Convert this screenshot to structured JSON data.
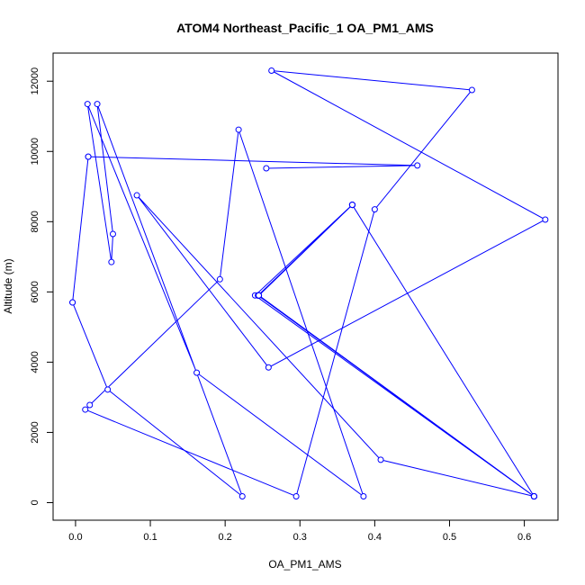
{
  "chart_data": {
    "type": "line",
    "title": "ATOM4 Northeast_Pacific_1 OA_PM1_AMS",
    "xlabel": "OA_PM1_AMS",
    "ylabel": "Altitude (m)",
    "xlim": [
      -0.03,
      0.645
    ],
    "ylim": [
      -500,
      12800
    ],
    "x_ticks": [
      0.0,
      0.1,
      0.2,
      0.3,
      0.4,
      0.5,
      0.6
    ],
    "x_tick_labels": [
      "0.0",
      "0.1",
      "0.2",
      "0.3",
      "0.4",
      "0.5",
      "0.6"
    ],
    "y_ticks": [
      0,
      2000,
      4000,
      6000,
      8000,
      10000,
      12000
    ],
    "y_tick_labels": [
      "0",
      "2000",
      "4000",
      "6000",
      "8000",
      "10000",
      "12000"
    ],
    "grid": false,
    "series": [
      {
        "color": "#0000ff",
        "marker": "open-circle",
        "points": [
          {
            "x": 0.613,
            "y": 180
          },
          {
            "x": 0.245,
            "y": 5900
          },
          {
            "x": 0.37,
            "y": 8480
          },
          {
            "x": 0.244,
            "y": 5900
          },
          {
            "x": 0.613,
            "y": 180
          },
          {
            "x": 0.245,
            "y": 5900
          },
          {
            "x": 0.37,
            "y": 8480
          },
          {
            "x": 0.244,
            "y": 5900
          },
          {
            "x": 0.613,
            "y": 180
          },
          {
            "x": 0.245,
            "y": 5900
          },
          {
            "x": 0.37,
            "y": 8480
          },
          {
            "x": 0.24,
            "y": 5900
          },
          {
            "x": 0.613,
            "y": 180
          },
          {
            "x": 0.245,
            "y": 5900
          },
          {
            "x": 0.37,
            "y": 8480
          },
          {
            "x": 0.245,
            "y": 5900
          },
          {
            "x": 0.613,
            "y": 180
          },
          {
            "x": 0.245,
            "y": 5900
          },
          {
            "x": 0.37,
            "y": 8480
          },
          {
            "x": 0.244,
            "y": 5900
          },
          {
            "x": 0.613,
            "y": 180
          },
          {
            "x": 0.245,
            "y": 5900
          },
          {
            "x": 0.37,
            "y": 8480
          },
          {
            "x": 0.613,
            "y": 180
          },
          {
            "x": 0.244,
            "y": 5900
          },
          {
            "x": 0.37,
            "y": 8480
          },
          {
            "x": 0.613,
            "y": 180
          },
          {
            "x": 0.245,
            "y": 5900
          },
          {
            "x": 0.37,
            "y": 8480
          }
        ]
      },
      {
        "color": "#0000ff",
        "marker": "open-circle",
        "points": [
          {
            "x": 0.013,
            "y": 2650
          },
          {
            "x": 0.295,
            "y": 180
          },
          {
            "x": 0.4,
            "y": 8350
          },
          {
            "x": 0.53,
            "y": 11750
          },
          {
            "x": 0.262,
            "y": 12300
          },
          {
            "x": 0.628,
            "y": 8060
          },
          {
            "x": 0.258,
            "y": 3850
          },
          {
            "x": 0.082,
            "y": 8750
          },
          {
            "x": 0.408,
            "y": 1220
          },
          {
            "x": 0.613,
            "y": 180
          },
          {
            "x": 0.245,
            "y": 5900
          },
          {
            "x": 0.37,
            "y": 8480
          }
        ]
      },
      {
        "color": "#0000ff",
        "marker": "open-circle",
        "points": [
          {
            "x": -0.004,
            "y": 5700
          },
          {
            "x": 0.043,
            "y": 3220
          },
          {
            "x": 0.223,
            "y": 180
          },
          {
            "x": 0.029,
            "y": 11350
          },
          {
            "x": 0.05,
            "y": 7650
          },
          {
            "x": 0.048,
            "y": 6850
          },
          {
            "x": 0.016,
            "y": 11350
          },
          {
            "x": 0.162,
            "y": 3700
          },
          {
            "x": 0.385,
            "y": 180
          },
          {
            "x": 0.218,
            "y": 10620
          },
          {
            "x": 0.193,
            "y": 6360
          },
          {
            "x": 0.019,
            "y": 2780
          }
        ]
      },
      {
        "color": "#0000ff",
        "marker": "open-circle",
        "points": [
          {
            "x": 0.017,
            "y": 9850
          },
          {
            "x": 0.457,
            "y": 9600
          },
          {
            "x": 0.255,
            "y": 9520
          }
        ]
      },
      {
        "color": "#0000ff",
        "marker": "open-circle",
        "points": [
          {
            "x": 0.017,
            "y": 9850
          },
          {
            "x": -0.004,
            "y": 5700
          }
        ]
      }
    ]
  }
}
